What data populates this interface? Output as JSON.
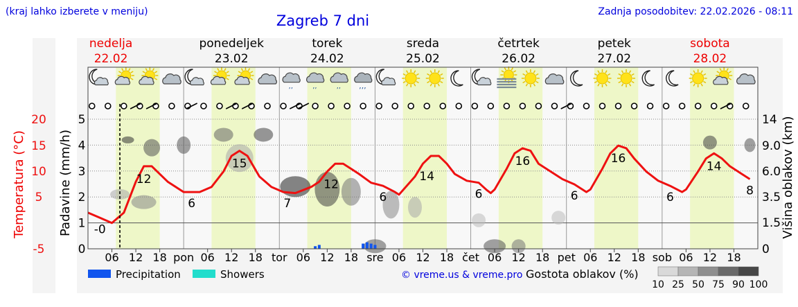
{
  "header": {
    "hint": "(kraj lahko izberete v meniju)",
    "title": "Zagreb 7 dni",
    "updated": "Zadnja posodobitev: 22.02.2026 - 08:11"
  },
  "days": [
    {
      "name": "nedelja",
      "date": "22.02",
      "weekend": true
    },
    {
      "name": "ponedeljek",
      "date": "23.02",
      "weekend": false
    },
    {
      "name": "torek",
      "date": "24.02",
      "weekend": false
    },
    {
      "name": "sreda",
      "date": "25.02",
      "weekend": false
    },
    {
      "name": "četrtek",
      "date": "26.02",
      "weekend": false
    },
    {
      "name": "petek",
      "date": "27.02",
      "weekend": false
    },
    {
      "name": "sobota",
      "date": "28.02",
      "weekend": true
    }
  ],
  "x_axis": {
    "hour_labels": [
      "06",
      "12",
      "18"
    ],
    "day_abbrevs": [
      "pon",
      "tor",
      "sre",
      "čet",
      "pet",
      "sob"
    ]
  },
  "icons": [
    "moon-cloud",
    "sun-cloud",
    "sun-cloud",
    "cloud",
    "moon-cloud",
    "sun-cloud",
    "sun-cloud",
    "cloud",
    "cloud-drizzle",
    "cloud-drizzle",
    "cloud-drizzle",
    "cloud-rain",
    "moon-cloud",
    "sun",
    "sun",
    "moon",
    "moon-cloud",
    "fog",
    "sun",
    "cloud",
    "moon",
    "sun",
    "sun",
    "moon",
    "moon",
    "sun",
    "sun-cloud",
    "cloud"
  ],
  "legend": {
    "precipitation": "Precipitation",
    "showers": "Showers",
    "copyright": "© vreme.us & vreme.pro",
    "density_title": "Gostota oblakov (%)",
    "density_ticks": [
      "10",
      "25",
      "50",
      "75",
      "90",
      "100"
    ]
  },
  "colors": {
    "temperature": "#ee1111",
    "precipitation": "#1155ee",
    "showers": "#22ddcc",
    "daytime_band": "#eef7c8",
    "title_blue": "#0000dd",
    "weekend_red": "#ee0000"
  },
  "chart_data": {
    "type": "line",
    "title": "Zagreb 7 dni",
    "x_unit": "hours since 22.02 00:00",
    "now_marker_hour": 8,
    "y_left_temperature": {
      "label": "Temperatura (°C)",
      "ticks": [
        20,
        15,
        10,
        5,
        -5
      ],
      "tick_labels": [
        "20",
        "15",
        "10",
        "5",
        "-5"
      ],
      "range": [
        -5,
        20
      ]
    },
    "y_left_precipitation": {
      "label": "Padavine (mm/h)",
      "ticks": [
        0,
        1,
        2,
        3,
        4,
        5
      ],
      "tick_labels": [
        "0",
        "1",
        "2",
        "3",
        "4",
        "5"
      ],
      "range": [
        0,
        5
      ]
    },
    "y_right_cloud_height": {
      "label": "Višina oblakov (km)",
      "ticks": [
        0,
        1.5,
        3.5,
        6.0,
        9.0,
        14
      ],
      "tick_labels": [
        "0",
        "1.5",
        "3.5",
        "6.0",
        "9.0",
        "14"
      ]
    },
    "temperature_series": {
      "name": "Temperatura",
      "points": [
        [
          0,
          2
        ],
        [
          3,
          1
        ],
        [
          6,
          0
        ],
        [
          9,
          2
        ],
        [
          12,
          8
        ],
        [
          14,
          11
        ],
        [
          16,
          11
        ],
        [
          20,
          8
        ],
        [
          24,
          6
        ],
        [
          28,
          6
        ],
        [
          31,
          7
        ],
        [
          34,
          10
        ],
        [
          36,
          13
        ],
        [
          38,
          14
        ],
        [
          40,
          13
        ],
        [
          43,
          9
        ],
        [
          46,
          7
        ],
        [
          49,
          6
        ],
        [
          52,
          5.8
        ],
        [
          54,
          6.4
        ],
        [
          56,
          7
        ],
        [
          58,
          8
        ],
        [
          60,
          10
        ],
        [
          62,
          11.5
        ],
        [
          64,
          11.5
        ],
        [
          66,
          10.5
        ],
        [
          68,
          9.5
        ],
        [
          71,
          7.8
        ],
        [
          74,
          7.2
        ],
        [
          77,
          6
        ],
        [
          78,
          5.5
        ],
        [
          82,
          9
        ],
        [
          84,
          11.5
        ],
        [
          86,
          13
        ],
        [
          88,
          13
        ],
        [
          90,
          11.5
        ],
        [
          92,
          9.5
        ],
        [
          95,
          8.2
        ],
        [
          98,
          7.8
        ],
        [
          100,
          6.4
        ],
        [
          101,
          5.8
        ],
        [
          102,
          6.5
        ],
        [
          105,
          10.5
        ],
        [
          107,
          13.5
        ],
        [
          109,
          14.5
        ],
        [
          111,
          14
        ],
        [
          113,
          11.5
        ],
        [
          116,
          10
        ],
        [
          119,
          8.5
        ],
        [
          122,
          7.5
        ],
        [
          124,
          6.5
        ],
        [
          125,
          6
        ],
        [
          126,
          6.5
        ],
        [
          129,
          10.5
        ],
        [
          131,
          13.5
        ],
        [
          133,
          15
        ],
        [
          135,
          14.5
        ],
        [
          137,
          12.5
        ],
        [
          140,
          10
        ],
        [
          143,
          8.2
        ],
        [
          146,
          7.2
        ],
        [
          149,
          6
        ],
        [
          150,
          6.5
        ],
        [
          153,
          10
        ],
        [
          155,
          12.5
        ],
        [
          157,
          13.5
        ],
        [
          159,
          12.5
        ],
        [
          161,
          11
        ],
        [
          164,
          9.5
        ],
        [
          166,
          8.5
        ]
      ],
      "labels": [
        {
          "hour": 3,
          "value": "-0"
        },
        {
          "hour": 14,
          "value": "12"
        },
        {
          "hour": 26,
          "value": "6"
        },
        {
          "hour": 38,
          "value": "15"
        },
        {
          "hour": 50,
          "value": "7"
        },
        {
          "hour": 61,
          "value": "12"
        },
        {
          "hour": 74,
          "value": "6"
        },
        {
          "hour": 85,
          "value": "14"
        },
        {
          "hour": 98,
          "value": "6"
        },
        {
          "hour": 109,
          "value": "16"
        },
        {
          "hour": 122,
          "value": "6"
        },
        {
          "hour": 133,
          "value": "16"
        },
        {
          "hour": 146,
          "value": "6"
        },
        {
          "hour": 157,
          "value": "14"
        },
        {
          "hour": 166,
          "value": "8"
        }
      ]
    },
    "precipitation_bars": [
      {
        "hour": 57,
        "value": 0.1
      },
      {
        "hour": 58,
        "value": 0.15
      },
      {
        "hour": 69,
        "value": 0.2
      },
      {
        "hour": 70,
        "value": 0.25
      },
      {
        "hour": 71,
        "value": 0.2
      },
      {
        "hour": 72,
        "value": 0.15
      }
    ],
    "showers_bars": [],
    "cloud_density_scale": [
      10,
      25,
      50,
      75,
      90,
      100
    ],
    "grid": true,
    "legend": [
      "Precipitation",
      "Showers"
    ]
  }
}
